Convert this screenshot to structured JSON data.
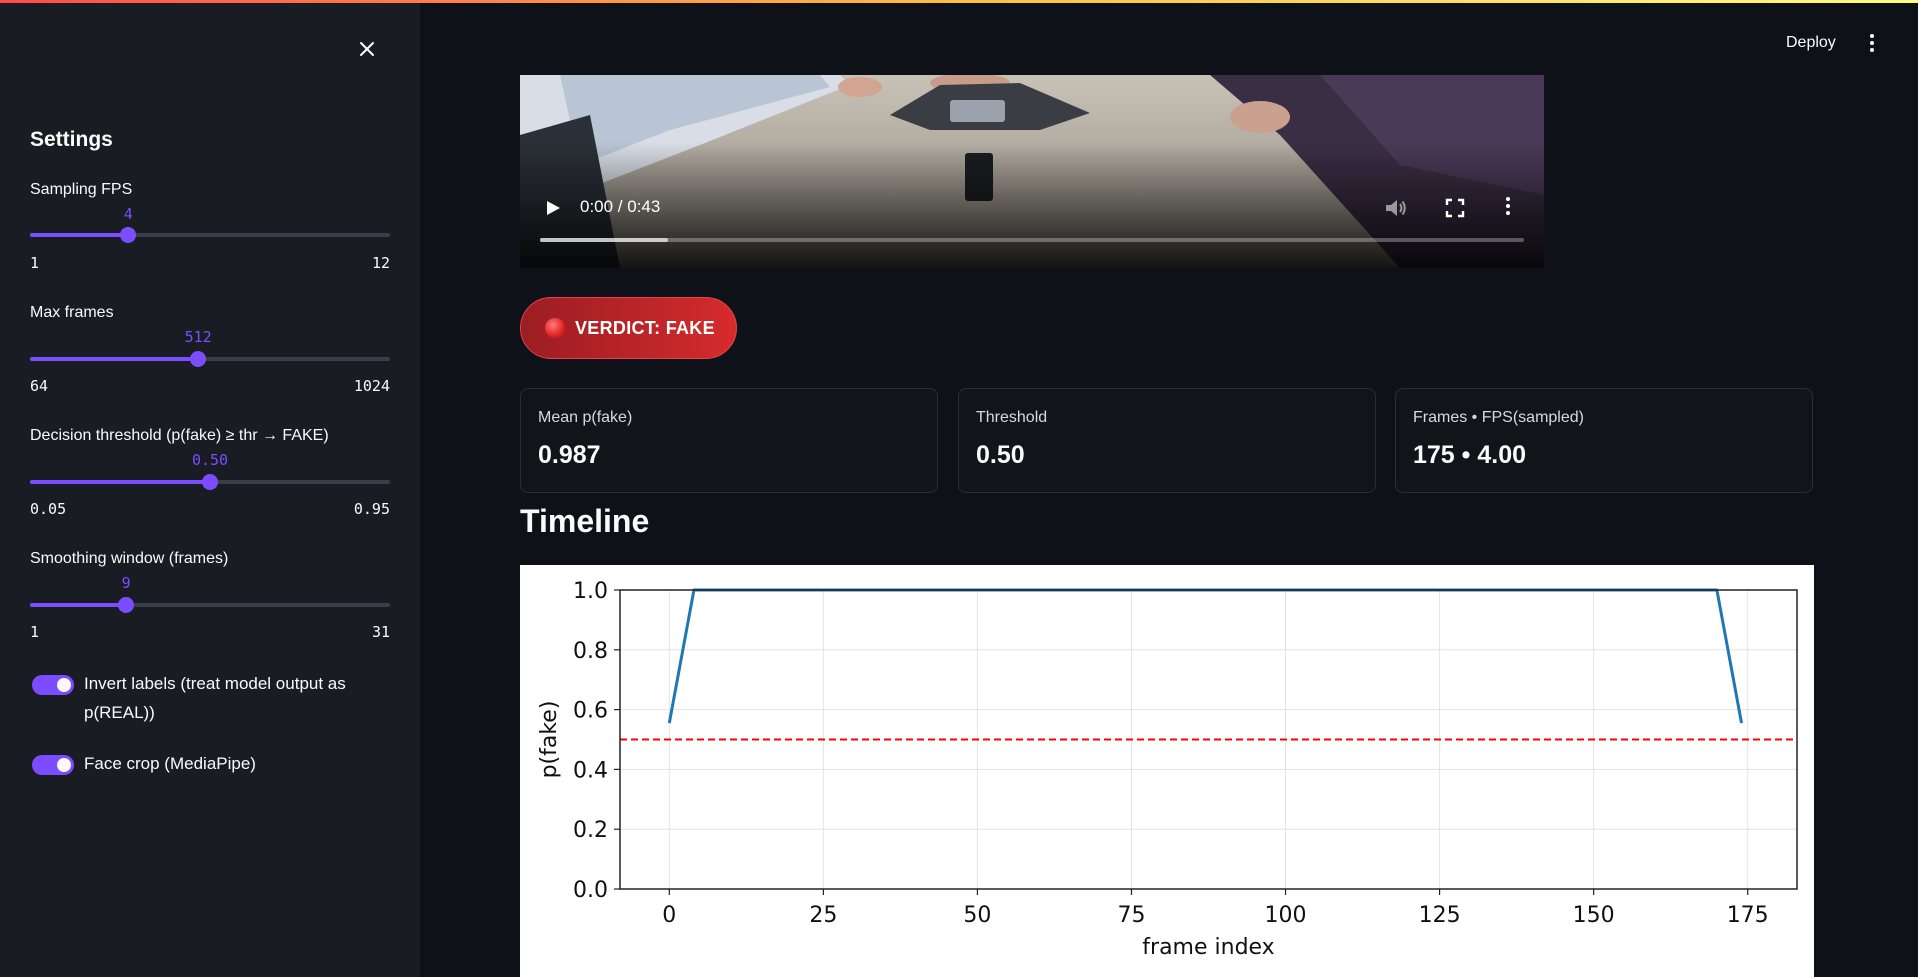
{
  "header": {
    "deploy_label": "Deploy"
  },
  "sidebar": {
    "title": "Settings",
    "sliders": [
      {
        "label": "Sampling FPS",
        "value": "4",
        "min": "1",
        "max": "12",
        "fraction": 0.273
      },
      {
        "label": "Max frames",
        "value": "512",
        "min": "64",
        "max": "1024",
        "fraction": 0.467
      },
      {
        "label": "Decision threshold (p(fake) ≥ thr → FAKE)",
        "value": "0.50",
        "min": "0.05",
        "max": "0.95",
        "fraction": 0.5
      },
      {
        "label": "Smoothing window (frames)",
        "value": "9",
        "min": "1",
        "max": "31",
        "fraction": 0.267
      }
    ],
    "toggles": [
      {
        "label": "Invert labels (treat model output as p(REAL))",
        "on": true
      },
      {
        "label": "Face crop (MediaPipe)",
        "on": true
      }
    ]
  },
  "video": {
    "time": "0:00 / 0:43",
    "buffered_fraction": 0.13
  },
  "verdict": {
    "text": "VERDICT: FAKE"
  },
  "metrics": [
    {
      "label": "Mean p(fake)",
      "value": "0.987"
    },
    {
      "label": "Threshold",
      "value": "0.50"
    },
    {
      "label": "Frames • FPS(sampled)",
      "value": "175 • 4.00"
    }
  ],
  "timeline": {
    "heading": "Timeline"
  },
  "chart_data": {
    "type": "line",
    "xlabel": "frame index",
    "ylabel": "p(fake)",
    "xlim": [
      -8,
      183
    ],
    "ylim": [
      0.0,
      1.0
    ],
    "xticks": [
      "0",
      "25",
      "50",
      "75",
      "100",
      "125",
      "150",
      "175"
    ],
    "xtick_values": [
      0,
      25,
      50,
      75,
      100,
      125,
      150,
      175
    ],
    "yticks": [
      "0.0",
      "0.2",
      "0.4",
      "0.6",
      "0.8",
      "1.0"
    ],
    "ytick_values": [
      0.0,
      0.2,
      0.4,
      0.6,
      0.8,
      1.0
    ],
    "grid": true,
    "series": [
      {
        "x": [
          0,
          4,
          170,
          174
        ],
        "y": [
          0.555,
          1.0,
          1.0,
          0.555
        ],
        "color": "#1f77b4"
      }
    ],
    "threshold_line": {
      "y": 0.5,
      "color": "#ff0000",
      "style": "dashed"
    }
  }
}
